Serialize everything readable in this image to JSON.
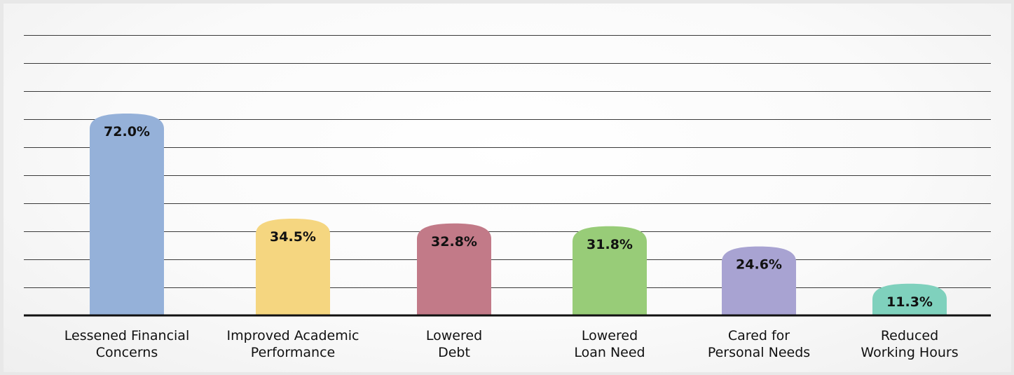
{
  "chart_data": {
    "type": "bar",
    "categories": [
      [
        "Lessened Financial",
        "Concerns"
      ],
      [
        "Improved Academic",
        "Performance"
      ],
      [
        "Lowered",
        "Debt"
      ],
      [
        "Lowered",
        "Loan Need"
      ],
      [
        "Cared for",
        "Personal Needs"
      ],
      [
        "Reduced",
        "Working Hours"
      ]
    ],
    "values": [
      72.0,
      34.5,
      32.8,
      31.8,
      24.6,
      11.3
    ],
    "value_labels": [
      "72.0%",
      "34.5%",
      "32.8%",
      "31.8%",
      "24.6%",
      "11.3%"
    ],
    "colors": [
      "#95b1d9",
      "#f5d680",
      "#c27a88",
      "#98cc78",
      "#a8a3d2",
      "#7fd1bd"
    ],
    "ylim": [
      0,
      100
    ],
    "gridline_count": 10,
    "grid": true,
    "title": "",
    "xlabel": "",
    "ylabel": ""
  }
}
